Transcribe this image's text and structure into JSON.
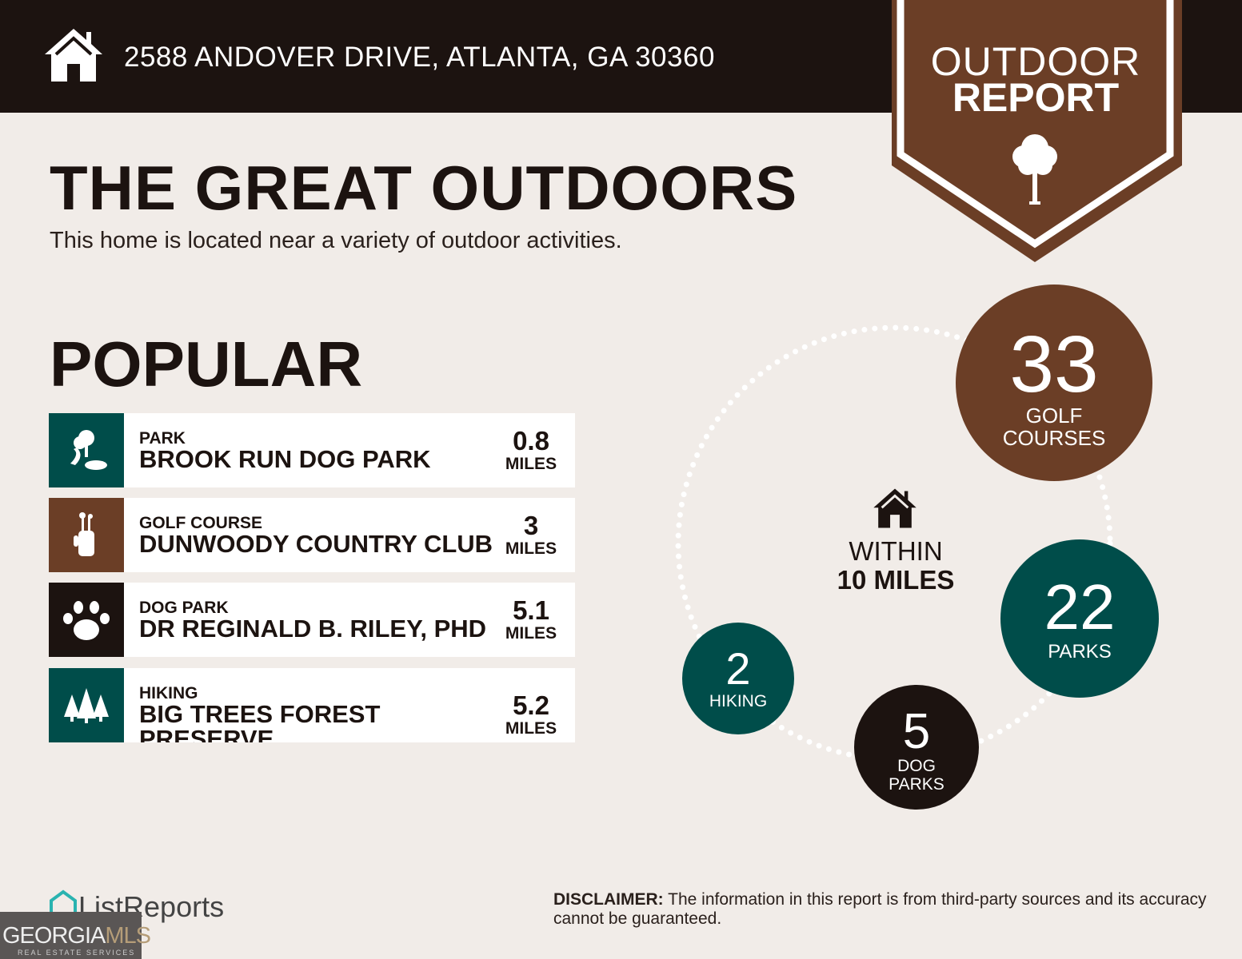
{
  "header": {
    "address": "2588 ANDOVER DRIVE, ATLANTA, GA 30360"
  },
  "badge": {
    "line1": "OUTDOOR",
    "line2": "REPORT"
  },
  "title": "THE GREAT OUTDOORS",
  "subtitle": "This home is located near a variety of outdoor activities.",
  "popular": {
    "heading": "POPULAR",
    "items": [
      {
        "category": "PARK",
        "name": "BROOK RUN DOG PARK",
        "distance": "0.8",
        "unit": "MILES",
        "icon": "park-icon",
        "color": "#004d4a"
      },
      {
        "category": "GOLF COURSE",
        "name": "DUNWOODY COUNTRY CLUB",
        "distance": "3",
        "unit": "MILES",
        "icon": "golf-bag-icon",
        "color": "#6b3e26"
      },
      {
        "category": "DOG PARK",
        "name": "DR REGINALD B. RILEY, PHD",
        "distance": "5.1",
        "unit": "MILES",
        "icon": "paw-icon",
        "color": "#1c1310"
      },
      {
        "category": "HIKING",
        "name": "BIG TREES FOREST PRESERVE",
        "distance": "5.2",
        "unit": "MILES",
        "icon": "pine-trees-icon",
        "color": "#004d4a"
      }
    ]
  },
  "summary": {
    "within_line1": "WITHIN",
    "within_line2": "10 MILES",
    "stats": [
      {
        "count": "33",
        "label1": "GOLF",
        "label2": "COURSES",
        "color": "#6b3e26"
      },
      {
        "count": "22",
        "label1": "PARKS",
        "label2": "",
        "color": "#004d4a"
      },
      {
        "count": "5",
        "label1": "DOG",
        "label2": "PARKS",
        "color": "#1c1310"
      },
      {
        "count": "2",
        "label1": "HIKING",
        "label2": "",
        "color": "#004d4a"
      }
    ]
  },
  "footer": {
    "logo": "ListReports",
    "disclaimer_bold": "DISCLAIMER:",
    "disclaimer": " The information in this report is from third-party sources and its accuracy cannot be guaranteed.",
    "gmls": "GEORGIA",
    "gmls2": "MLS",
    "gmls_sub": "REAL ESTATE SERVICES"
  },
  "colors": {
    "dark": "#1c1310",
    "brown": "#6b3e26",
    "teal": "#004d4a",
    "background": "#f1ece8"
  }
}
